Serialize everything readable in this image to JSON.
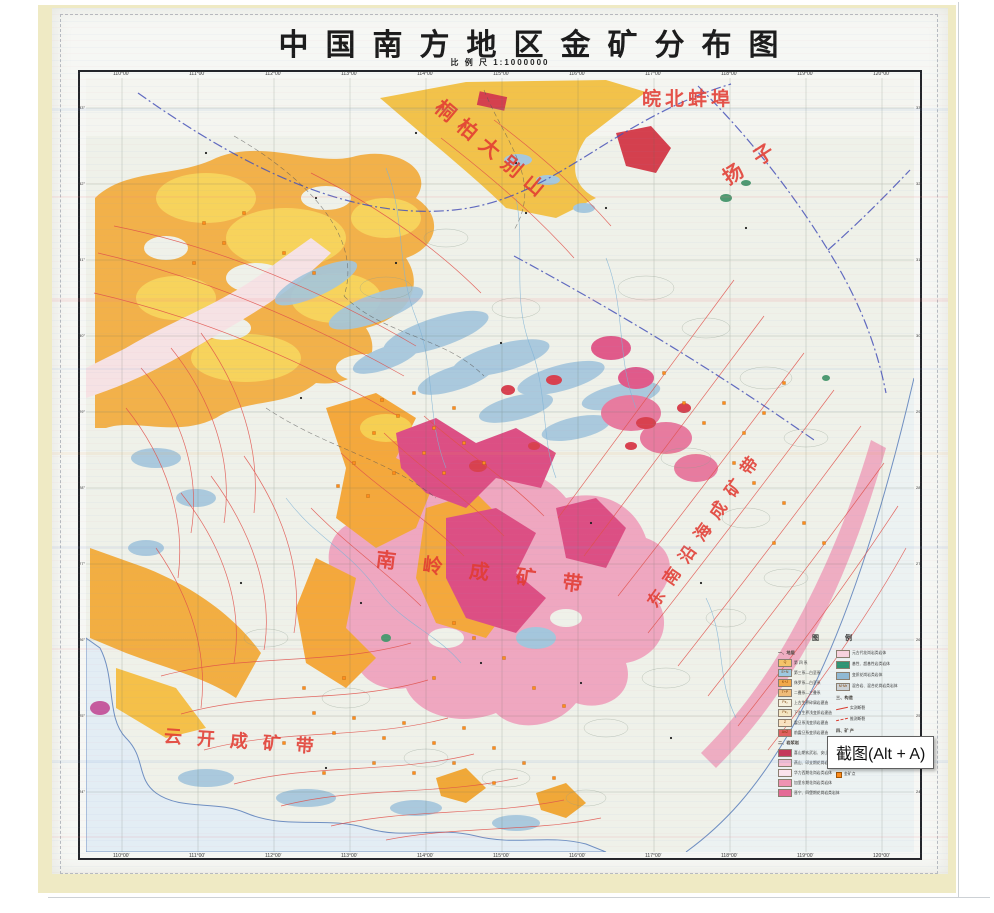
{
  "page": {
    "title": "中国南方地区金矿分布图",
    "scale_label": "比 例 尺",
    "scale_value": "1:1000000"
  },
  "frame": {
    "lon_labels": [
      "110°00′",
      "111°00′",
      "112°00′",
      "113°00′",
      "114°00′",
      "115°00′",
      "116°00′",
      "117°00′",
      "118°00′",
      "119°00′",
      "120°00′"
    ],
    "lat_labels": [
      "33°",
      "32°",
      "31°",
      "30°",
      "29°",
      "28°",
      "27°",
      "26°",
      "25°",
      "24°"
    ]
  },
  "map_labels": {
    "wanbei_bengbu": "皖北蚌埠",
    "tongbai_dabie": "桐柏大别山",
    "yangzi": "扬子",
    "nanling_belt": "南岭成矿带",
    "se_coastal_belt": "东南沿海成矿带",
    "yunkai_belt": "云开成矿带"
  },
  "legend": {
    "title_left": "图",
    "title_right": "例",
    "col1": [
      {
        "t": "h",
        "label": "一、地层"
      },
      {
        "t": "s",
        "c": "#f5c469",
        "sym": "Q",
        "label": "第 四 系"
      },
      {
        "t": "s",
        "c": "#9ec9e2",
        "sym": "E+N",
        "label": "第三系—白垩系"
      },
      {
        "t": "s",
        "c": "#f4a948",
        "sym": "K+J",
        "label": "侏罗系—白垩系"
      },
      {
        "t": "s",
        "c": "#f0bc7a",
        "sym": "T+P",
        "label": "二叠系—三叠系"
      },
      {
        "t": "s",
        "c": "#f7f0da",
        "sym": "Pz₂",
        "label": "上古生界碎屑岩建造"
      },
      {
        "t": "s",
        "c": "#f3e6c2",
        "sym": "Pz₁",
        "label": "下古生界浅变质岩建造"
      },
      {
        "t": "s",
        "c": "#fae2c0",
        "sym": "Z",
        "label": "震旦系浅变质岩建造"
      },
      {
        "t": "s",
        "c": "#e06060",
        "sym": "AnZ",
        "label": "前震旦系变质岩建造"
      },
      {
        "t": "h",
        "label": "二、岩浆岩"
      },
      {
        "t": "s",
        "c": "#c43a5a",
        "hatch": true,
        "label": "喜山期玄武岩、安山岩"
      },
      {
        "t": "s",
        "c": "#f6bed2",
        "label": "燕山、印支期花岗岩类岩体"
      },
      {
        "t": "s",
        "c": "#fbe3ec",
        "label": "华力西期花岗岩类岩体"
      },
      {
        "t": "s",
        "c": "#ef92b2",
        "label": "加里东期花岗岩类岩体"
      },
      {
        "t": "s",
        "c": "#e46a96",
        "label": "晋宁、四堡期花岗岩类岩体"
      }
    ],
    "col2": [
      {
        "t": "s",
        "c": "#f8d2de",
        "label": "元古代花岗岩类岩体"
      },
      {
        "t": "s",
        "c": "#2f9474",
        "label": "基性、超基性岩类岩体"
      },
      {
        "t": "s",
        "c": "#8fb9d4",
        "label": "变质花岗岩类岩体"
      },
      {
        "t": "s",
        "c": "#ccd2d6",
        "sym": "M·Mr",
        "label": "混合岩、混合花岗岩类岩体"
      },
      {
        "t": "h",
        "label": "三、构造"
      },
      {
        "t": "l",
        "label": "实测断裂"
      },
      {
        "t": "ld",
        "label": "推测断裂"
      },
      {
        "t": "h",
        "label": "四、矿 产"
      },
      {
        "t": "d",
        "sz": 7,
        "label": "大型金矿床"
      },
      {
        "t": "d",
        "sz": 6,
        "label": "中型金矿床"
      },
      {
        "t": "d",
        "sz": 5,
        "label": "小型金矿床"
      },
      {
        "t": "d",
        "sz": 4,
        "label": "金矿点"
      }
    ]
  },
  "tooltip": {
    "text": "截图(Alt + A)"
  }
}
